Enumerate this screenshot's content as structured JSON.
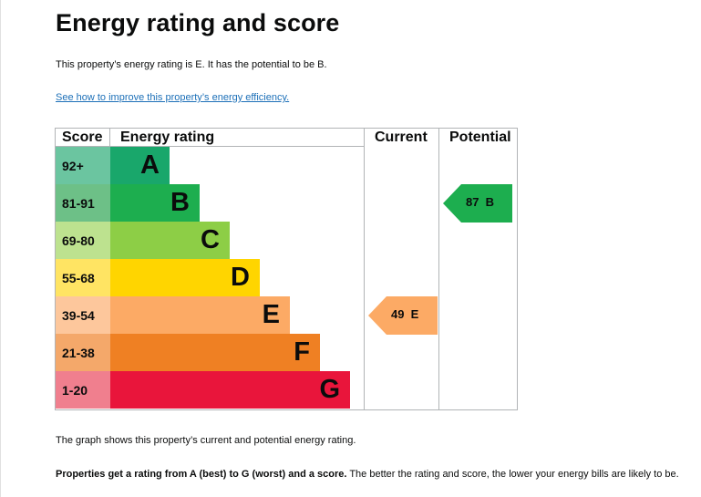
{
  "page": {
    "title": "Energy rating and score",
    "intro": "This property’s energy rating is E. It has the potential to be B.",
    "improve_link": "See how to improve this property’s energy efficiency.",
    "graph_note": "The graph shows this property’s current and potential energy rating.",
    "rating_note_bold": "Properties get a rating from A (best) to G (worst) and a score.",
    "rating_note_rest": " The better the rating and score, the lower your energy bills are likely to be."
  },
  "chart_data": {
    "type": "bar",
    "headers": {
      "score": "Score",
      "rating": "Energy rating",
      "current": "Current",
      "potential": "Potential"
    },
    "bands": [
      {
        "score": "92+",
        "letter": "A",
        "color": "#19a76b",
        "score_color": "#6bc5a0",
        "level": 1
      },
      {
        "score": "81-91",
        "letter": "B",
        "color": "#1dae4f",
        "score_color": "#6dc087",
        "level": 2
      },
      {
        "score": "69-80",
        "letter": "C",
        "color": "#8dce46",
        "score_color": "#bde28f",
        "level": 3
      },
      {
        "score": "55-68",
        "letter": "D",
        "color": "#ffd500",
        "score_color": "#ffe463",
        "level": 4
      },
      {
        "score": "39-54",
        "letter": "E",
        "color": "#fcaa65",
        "score_color": "#fdc79c",
        "level": 5
      },
      {
        "score": "21-38",
        "letter": "F",
        "color": "#ef8023",
        "score_color": "#f4a86a",
        "level": 6
      },
      {
        "score": "1-20",
        "letter": "G",
        "color": "#e9153b",
        "score_color": "#f07f8e",
        "level": 7
      }
    ],
    "current": {
      "score": 49,
      "letter": "E",
      "color": "#fcaa65",
      "label": "49  E"
    },
    "potential": {
      "score": 87,
      "letter": "B",
      "color": "#1dae4f",
      "label": "87  B"
    }
  }
}
